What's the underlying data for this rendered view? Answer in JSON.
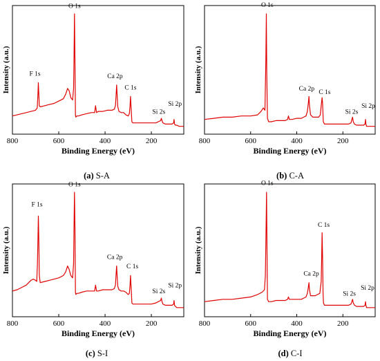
{
  "chart_data": [
    {
      "type": "line",
      "caption_letter": "(a)",
      "caption_text": "S-A",
      "xlabel": "Binding Energy (eV)",
      "ylabel": "Intensity (a.u.)",
      "xlim": [
        800,
        60
      ],
      "x_ticks": [
        800,
        600,
        400,
        200
      ],
      "color": "#e00000",
      "series": [
        {
          "x": [
            800,
            780,
            760,
            740,
            720,
            700,
            693,
            690,
            688,
            686,
            684,
            680,
            660,
            640,
            620,
            600,
            580,
            570,
            562,
            555,
            548,
            540,
            536,
            534,
            532,
            530,
            528,
            526,
            522,
            515,
            500,
            480,
            460,
            445,
            441,
            437,
            430,
            410,
            390,
            370,
            360,
            355,
            352,
            350,
            348,
            345,
            340,
            330,
            320,
            310,
            300,
            295,
            292,
            290,
            288,
            286,
            284,
            280,
            270,
            250,
            230,
            200,
            180,
            170,
            160,
            157,
            154,
            150,
            140,
            130,
            120,
            110,
            104,
            102,
            100,
            96,
            90,
            80,
            70,
            60
          ],
          "y": [
            0.11,
            0.12,
            0.13,
            0.14,
            0.15,
            0.16,
            0.18,
            0.3,
            0.4,
            0.3,
            0.2,
            0.19,
            0.2,
            0.21,
            0.22,
            0.24,
            0.26,
            0.3,
            0.35,
            0.33,
            0.27,
            0.25,
            0.35,
            0.6,
            1.0,
            0.6,
            0.12,
            0.1,
            0.11,
            0.11,
            0.12,
            0.13,
            0.14,
            0.14,
            0.2,
            0.14,
            0.15,
            0.15,
            0.16,
            0.16,
            0.17,
            0.2,
            0.3,
            0.38,
            0.3,
            0.19,
            0.15,
            0.14,
            0.14,
            0.12,
            0.11,
            0.13,
            0.2,
            0.28,
            0.2,
            0.12,
            0.06,
            0.05,
            0.05,
            0.05,
            0.05,
            0.05,
            0.05,
            0.06,
            0.07,
            0.09,
            0.07,
            0.05,
            0.04,
            0.04,
            0.04,
            0.04,
            0.05,
            0.08,
            0.04,
            0.03,
            0.03,
            0.02,
            0.02,
            0.02
          ]
        }
      ],
      "peaks": [
        {
          "label": "F 1s",
          "x": 703,
          "y": 0.46
        },
        {
          "label": "O 1s",
          "x": 532,
          "y": 1.05
        },
        {
          "label": "Ca 2p",
          "x": 357,
          "y": 0.44
        },
        {
          "label": "C 1s",
          "x": 290,
          "y": 0.34
        },
        {
          "label": "Si 2s",
          "x": 168,
          "y": 0.13
        },
        {
          "label": "Si 2p",
          "x": 98,
          "y": 0.2
        }
      ]
    },
    {
      "type": "line",
      "caption_letter": "(b)",
      "caption_text": "C-A",
      "xlabel": "Binding Energy (eV)",
      "ylabel": "Intensity (a.u.)",
      "xlim": [
        800,
        60
      ],
      "x_ticks": [
        800,
        600,
        400,
        200
      ],
      "color": "#e00000",
      "series": [
        {
          "x": [
            800,
            760,
            720,
            680,
            640,
            600,
            570,
            555,
            545,
            538,
            534,
            532,
            530,
            527,
            522,
            510,
            490,
            470,
            450,
            440,
            436,
            432,
            420,
            400,
            380,
            370,
            360,
            354,
            350,
            347,
            345,
            340,
            330,
            320,
            310,
            305,
            298,
            294,
            290,
            288,
            285,
            280,
            270,
            250,
            230,
            210,
            190,
            175,
            165,
            161,
            158,
            155,
            150,
            140,
            130,
            120,
            110,
            104,
            102,
            100,
            97,
            90,
            80,
            70,
            60
          ],
          "y": [
            0.08,
            0.09,
            0.1,
            0.1,
            0.11,
            0.11,
            0.12,
            0.15,
            0.18,
            0.16,
            0.6,
            1.0,
            0.5,
            0.09,
            0.06,
            0.06,
            0.07,
            0.07,
            0.07,
            0.08,
            0.11,
            0.08,
            0.08,
            0.09,
            0.09,
            0.1,
            0.11,
            0.15,
            0.22,
            0.28,
            0.2,
            0.12,
            0.1,
            0.1,
            0.1,
            0.1,
            0.12,
            0.2,
            0.27,
            0.22,
            0.06,
            0.04,
            0.04,
            0.04,
            0.04,
            0.04,
            0.04,
            0.04,
            0.05,
            0.08,
            0.1,
            0.06,
            0.04,
            0.03,
            0.03,
            0.03,
            0.03,
            0.04,
            0.08,
            0.04,
            0.02,
            0.02,
            0.02,
            0.02,
            0.02
          ]
        }
      ],
      "peaks": [
        {
          "label": "O 1s",
          "x": 528,
          "y": 1.06
        },
        {
          "label": "Ca 2p",
          "x": 357,
          "y": 0.33
        },
        {
          "label": "C 1s",
          "x": 279,
          "y": 0.3
        },
        {
          "label": "Si 2s",
          "x": 162,
          "y": 0.13
        },
        {
          "label": "Si 2p",
          "x": 90,
          "y": 0.18
        }
      ]
    },
    {
      "type": "line",
      "caption_letter": "(c)",
      "caption_text": "S-I",
      "xlabel": "Binding Energy (eV)",
      "ylabel": "Intensity (a.u.)",
      "xlim": [
        800,
        60
      ],
      "x_ticks": [
        800,
        600,
        400,
        200
      ],
      "color": "#e00000",
      "series": [
        {
          "x": [
            800,
            780,
            760,
            740,
            720,
            710,
            700,
            695,
            692,
            690,
            688,
            686,
            684,
            680,
            660,
            640,
            620,
            600,
            580,
            570,
            562,
            555,
            548,
            540,
            536,
            534,
            532,
            530,
            528,
            526,
            522,
            515,
            500,
            480,
            460,
            445,
            441,
            437,
            430,
            410,
            390,
            370,
            360,
            355,
            352,
            350,
            348,
            345,
            340,
            330,
            320,
            310,
            300,
            295,
            292,
            290,
            288,
            286,
            284,
            280,
            270,
            250,
            230,
            200,
            180,
            170,
            160,
            157,
            154,
            150,
            140,
            130,
            120,
            110,
            104,
            102,
            100,
            96,
            90,
            80,
            70,
            60
          ],
          "y": [
            0.17,
            0.18,
            0.2,
            0.22,
            0.26,
            0.27,
            0.26,
            0.25,
            0.4,
            0.6,
            0.8,
            0.6,
            0.3,
            0.24,
            0.25,
            0.26,
            0.27,
            0.28,
            0.3,
            0.33,
            0.38,
            0.35,
            0.3,
            0.28,
            0.4,
            0.7,
            1.0,
            0.7,
            0.16,
            0.14,
            0.15,
            0.15,
            0.16,
            0.17,
            0.17,
            0.17,
            0.22,
            0.17,
            0.17,
            0.18,
            0.18,
            0.18,
            0.19,
            0.22,
            0.32,
            0.38,
            0.3,
            0.21,
            0.18,
            0.17,
            0.17,
            0.16,
            0.14,
            0.15,
            0.22,
            0.3,
            0.22,
            0.14,
            0.07,
            0.06,
            0.06,
            0.06,
            0.06,
            0.06,
            0.07,
            0.08,
            0.09,
            0.11,
            0.08,
            0.06,
            0.05,
            0.05,
            0.05,
            0.05,
            0.06,
            0.09,
            0.05,
            0.04,
            0.03,
            0.03,
            0.03,
            0.03
          ]
        }
      ],
      "peaks": [
        {
          "label": "F 1s",
          "x": 694,
          "y": 0.88
        },
        {
          "label": "O 1s",
          "x": 532,
          "y": 1.05
        },
        {
          "label": "Ca 2p",
          "x": 358,
          "y": 0.44
        },
        {
          "label": "C 1s",
          "x": 282,
          "y": 0.36
        },
        {
          "label": "Si 2s",
          "x": 168,
          "y": 0.15
        },
        {
          "label": "Si 2p",
          "x": 98,
          "y": 0.2
        }
      ]
    },
    {
      "type": "line",
      "caption_letter": "(d)",
      "caption_text": "C-I",
      "xlabel": "Binding Energy (eV)",
      "ylabel": "Intensity (a.u.)",
      "xlim": [
        800,
        60
      ],
      "x_ticks": [
        800,
        600,
        400,
        200
      ],
      "color": "#e00000",
      "series": [
        {
          "x": [
            800,
            760,
            720,
            680,
            640,
            600,
            570,
            550,
            540,
            536,
            533,
            531,
            529,
            527,
            522,
            510,
            490,
            470,
            450,
            440,
            436,
            432,
            420,
            400,
            380,
            370,
            360,
            354,
            350,
            347,
            345,
            340,
            330,
            320,
            310,
            300,
            294,
            292,
            290,
            288,
            286,
            284,
            280,
            270,
            250,
            230,
            210,
            190,
            175,
            165,
            161,
            158,
            155,
            150,
            140,
            130,
            120,
            110,
            104,
            102,
            100,
            97,
            90,
            80,
            70,
            60
          ],
          "y": [
            0.08,
            0.09,
            0.1,
            0.1,
            0.11,
            0.12,
            0.14,
            0.16,
            0.18,
            0.3,
            0.7,
            1.0,
            0.5,
            0.1,
            0.08,
            0.08,
            0.09,
            0.09,
            0.09,
            0.1,
            0.12,
            0.1,
            0.1,
            0.1,
            0.1,
            0.11,
            0.12,
            0.15,
            0.2,
            0.24,
            0.18,
            0.13,
            0.13,
            0.13,
            0.14,
            0.15,
            0.25,
            0.45,
            0.66,
            0.45,
            0.15,
            0.07,
            0.05,
            0.05,
            0.05,
            0.05,
            0.05,
            0.05,
            0.05,
            0.06,
            0.08,
            0.1,
            0.07,
            0.05,
            0.04,
            0.04,
            0.04,
            0.04,
            0.05,
            0.08,
            0.05,
            0.03,
            0.03,
            0.03,
            0.03,
            0.03
          ]
        }
      ],
      "peaks": [
        {
          "label": "O 1s",
          "x": 528,
          "y": 1.06
        },
        {
          "label": "Ca 2p",
          "x": 337,
          "y": 0.3
        },
        {
          "label": "C 1s",
          "x": 283,
          "y": 0.71
        },
        {
          "label": "Si 2s",
          "x": 172,
          "y": 0.13
        },
        {
          "label": "Si 2p",
          "x": 93,
          "y": 0.18
        }
      ]
    }
  ]
}
